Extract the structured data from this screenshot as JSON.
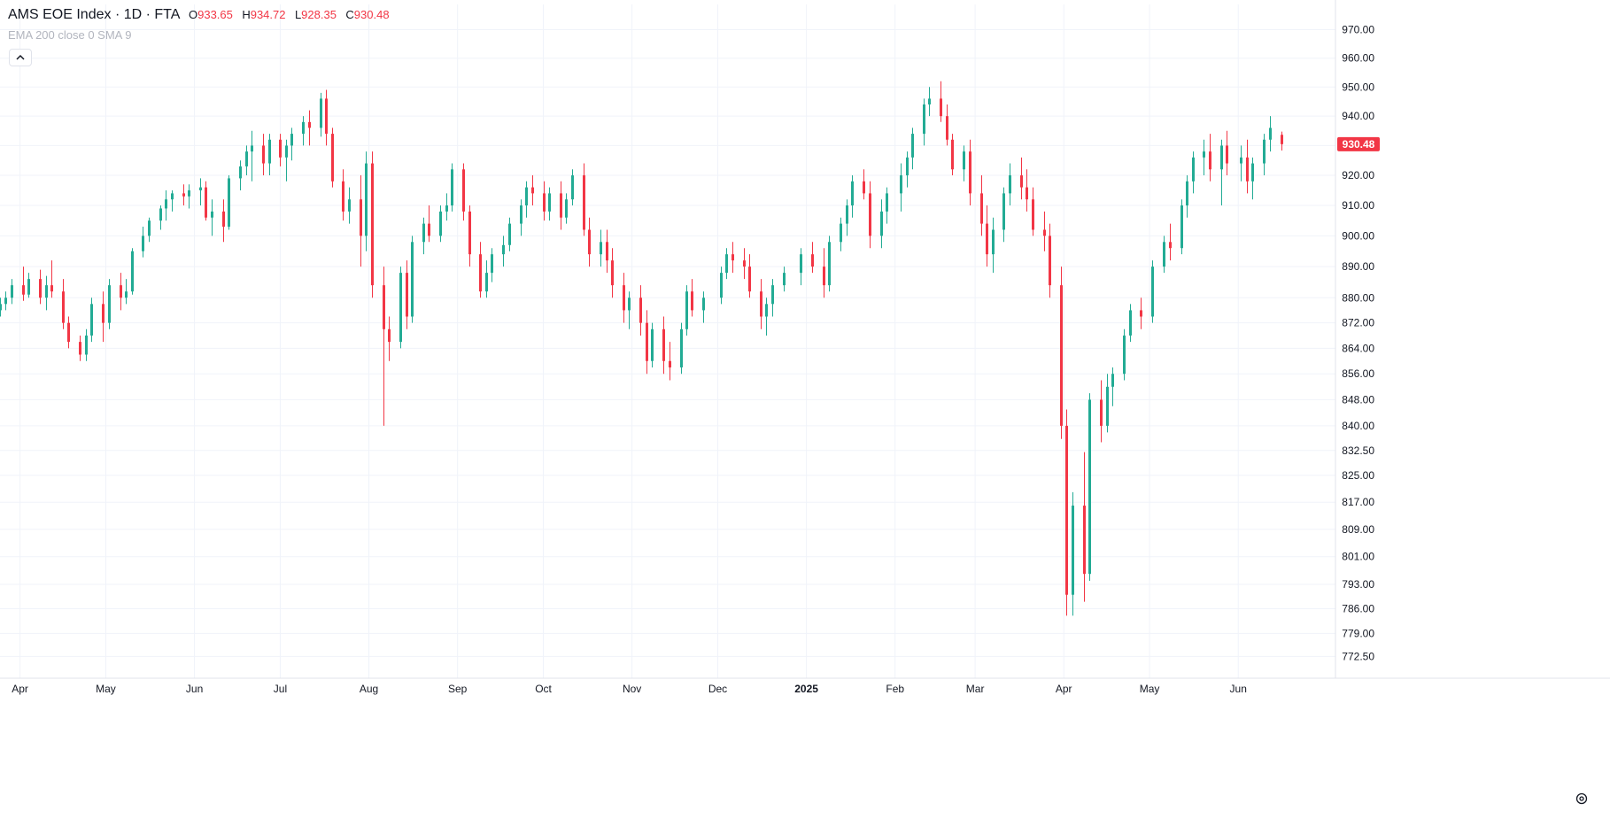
{
  "legend": {
    "symbol": "AMS EOE Index · 1D · FTA",
    "open_label": "O",
    "open": "933.65",
    "high_label": "H",
    "high": "934.72",
    "low_label": "L",
    "low": "928.35",
    "close_label": "C",
    "close": "930.48"
  },
  "indicators": "EMA 200 close 0 SMA 9",
  "colors": {
    "up": "#22ab94",
    "down": "#f23645",
    "grid": "#f0f3fa",
    "text": "#131722"
  },
  "icons": {
    "collapse": "chevron-up-icon",
    "settings": "gear-icon"
  },
  "chart_data": {
    "type": "candlestick",
    "title": "AMS EOE Index · 1D · FTA",
    "y_scale": "log",
    "ylim": [
      769,
      975
    ],
    "y_ticks": [
      970,
      960,
      950,
      940,
      930,
      920,
      910,
      900,
      890,
      880,
      872,
      864,
      856,
      848,
      840,
      832.5,
      825,
      817,
      809,
      801,
      793,
      786,
      779,
      772.5
    ],
    "y_tick_labels": [
      "970.00",
      "960.00",
      "950.00",
      "940.00",
      "930.00",
      "920.00",
      "910.00",
      "900.00",
      "890.00",
      "880.00",
      "872.00",
      "864.00",
      "856.00",
      "848.00",
      "840.00",
      "832.50",
      "825.00",
      "817.00",
      "809.00",
      "801.00",
      "793.00",
      "786.00",
      "779.00",
      "772.50"
    ],
    "x_range": [
      "2024-03-25",
      "2025-07-05"
    ],
    "x_ticks": [
      {
        "label": "Apr",
        "date": "2024-04-01"
      },
      {
        "label": "May",
        "date": "2024-05-01"
      },
      {
        "label": "Jun",
        "date": "2024-06-01"
      },
      {
        "label": "Jul",
        "date": "2024-07-01"
      },
      {
        "label": "Aug",
        "date": "2024-08-01"
      },
      {
        "label": "Sep",
        "date": "2024-09-01"
      },
      {
        "label": "Oct",
        "date": "2024-10-01"
      },
      {
        "label": "Nov",
        "date": "2024-11-01"
      },
      {
        "label": "Dec",
        "date": "2024-12-01"
      },
      {
        "label": "2025",
        "date": "2025-01-01",
        "bold": true
      },
      {
        "label": "Feb",
        "date": "2025-02-01"
      },
      {
        "label": "Mar",
        "date": "2025-03-01"
      },
      {
        "label": "Apr",
        "date": "2025-04-01"
      },
      {
        "label": "May",
        "date": "2025-05-01"
      },
      {
        "label": "Jun",
        "date": "2025-06-01"
      }
    ],
    "last_price_label": "930.48",
    "last_price": 930.48,
    "candles_fields": [
      "date",
      "open",
      "high",
      "low",
      "close"
    ],
    "candles": [
      [
        "2024-03-25",
        876,
        880,
        874,
        878
      ],
      [
        "2024-03-27",
        878,
        882,
        876,
        880
      ],
      [
        "2024-03-29",
        880,
        886,
        878,
        884
      ],
      [
        "2024-04-02",
        884,
        890,
        879,
        881
      ],
      [
        "2024-04-04",
        881,
        888,
        880,
        886
      ],
      [
        "2024-04-08",
        886,
        889,
        878,
        880
      ],
      [
        "2024-04-10",
        880,
        887,
        876,
        884
      ],
      [
        "2024-04-12",
        884,
        892,
        880,
        882
      ],
      [
        "2024-04-16",
        882,
        886,
        870,
        872
      ],
      [
        "2024-04-18",
        872,
        874,
        864,
        866
      ],
      [
        "2024-04-22",
        866,
        868,
        860,
        862
      ],
      [
        "2024-04-24",
        862,
        870,
        860,
        868
      ],
      [
        "2024-04-26",
        868,
        880,
        866,
        878
      ],
      [
        "2024-04-30",
        878,
        882,
        866,
        872
      ],
      [
        "2024-05-02",
        872,
        886,
        870,
        884
      ],
      [
        "2024-05-06",
        884,
        888,
        876,
        880
      ],
      [
        "2024-05-08",
        880,
        886,
        878,
        882
      ],
      [
        "2024-05-10",
        882,
        896,
        881,
        895
      ],
      [
        "2024-05-14",
        895,
        903,
        893,
        900
      ],
      [
        "2024-05-16",
        900,
        906,
        898,
        905
      ],
      [
        "2024-05-20",
        905,
        910,
        902,
        909
      ],
      [
        "2024-05-22",
        909,
        915,
        905,
        912
      ],
      [
        "2024-05-24",
        912,
        915,
        908,
        914
      ],
      [
        "2024-05-28",
        914,
        917,
        910,
        913
      ],
      [
        "2024-05-30",
        913,
        917,
        909,
        915
      ],
      [
        "2024-06-03",
        915,
        919,
        910,
        916
      ],
      [
        "2024-06-05",
        916,
        918,
        905,
        906
      ],
      [
        "2024-06-07",
        906,
        912,
        900,
        908
      ],
      [
        "2024-06-11",
        908,
        912,
        898,
        903
      ],
      [
        "2024-06-13",
        903,
        920,
        902,
        919
      ],
      [
        "2024-06-17",
        919,
        925,
        915,
        923
      ],
      [
        "2024-06-19",
        923,
        930,
        920,
        928
      ],
      [
        "2024-06-21",
        928,
        935,
        918,
        930
      ],
      [
        "2024-06-25",
        930,
        934,
        920,
        924
      ],
      [
        "2024-06-27",
        924,
        934,
        920,
        932
      ],
      [
        "2024-07-01",
        932,
        934,
        923,
        926
      ],
      [
        "2024-07-03",
        926,
        932,
        918,
        930
      ],
      [
        "2024-07-05",
        930,
        936,
        925,
        934
      ],
      [
        "2024-07-09",
        934,
        940,
        930,
        938
      ],
      [
        "2024-07-11",
        938,
        942,
        930,
        936
      ],
      [
        "2024-07-15",
        936,
        948,
        933,
        946
      ],
      [
        "2024-07-17",
        946,
        949,
        930,
        934
      ],
      [
        "2024-07-19",
        934,
        936,
        916,
        918
      ],
      [
        "2024-07-23",
        918,
        922,
        905,
        908
      ],
      [
        "2024-07-25",
        908,
        916,
        904,
        912
      ],
      [
        "2024-07-29",
        912,
        920,
        890,
        900
      ],
      [
        "2024-07-31",
        900,
        928,
        895,
        924
      ],
      [
        "2024-08-02",
        924,
        928,
        880,
        884
      ],
      [
        "2024-08-06",
        884,
        890,
        840,
        870
      ],
      [
        "2024-08-08",
        870,
        874,
        860,
        866
      ],
      [
        "2024-08-12",
        866,
        890,
        864,
        888
      ],
      [
        "2024-08-14",
        888,
        892,
        870,
        874
      ],
      [
        "2024-08-16",
        874,
        900,
        872,
        898
      ],
      [
        "2024-08-20",
        898,
        906,
        894,
        904
      ],
      [
        "2024-08-22",
        904,
        910,
        898,
        900
      ],
      [
        "2024-08-26",
        900,
        910,
        898,
        908
      ],
      [
        "2024-08-28",
        908,
        914,
        905,
        910
      ],
      [
        "2024-08-30",
        910,
        924,
        908,
        922
      ],
      [
        "2024-09-03",
        922,
        924,
        905,
        908
      ],
      [
        "2024-09-05",
        908,
        910,
        890,
        894
      ],
      [
        "2024-09-09",
        894,
        898,
        880,
        882
      ],
      [
        "2024-09-11",
        882,
        892,
        880,
        888
      ],
      [
        "2024-09-13",
        888,
        896,
        885,
        894
      ],
      [
        "2024-09-17",
        894,
        900,
        890,
        897
      ],
      [
        "2024-09-19",
        897,
        906,
        895,
        904
      ],
      [
        "2024-09-23",
        904,
        912,
        900,
        910
      ],
      [
        "2024-09-25",
        910,
        918,
        906,
        916
      ],
      [
        "2024-09-27",
        916,
        920,
        910,
        914
      ],
      [
        "2024-10-01",
        914,
        918,
        905,
        908
      ],
      [
        "2024-10-03",
        908,
        916,
        905,
        914
      ],
      [
        "2024-10-07",
        914,
        918,
        902,
        906
      ],
      [
        "2024-10-09",
        906,
        914,
        904,
        912
      ],
      [
        "2024-10-11",
        912,
        922,
        910,
        920
      ],
      [
        "2024-10-15",
        920,
        924,
        900,
        902
      ],
      [
        "2024-10-17",
        902,
        906,
        890,
        894
      ],
      [
        "2024-10-21",
        894,
        902,
        890,
        898
      ],
      [
        "2024-10-23",
        898,
        902,
        888,
        892
      ],
      [
        "2024-10-25",
        892,
        896,
        880,
        884
      ],
      [
        "2024-10-29",
        884,
        888,
        872,
        876
      ],
      [
        "2024-10-31",
        876,
        882,
        870,
        880
      ],
      [
        "2024-11-04",
        880,
        884,
        868,
        872
      ],
      [
        "2024-11-06",
        872,
        876,
        856,
        860
      ],
      [
        "2024-11-08",
        860,
        872,
        858,
        870
      ],
      [
        "2024-11-12",
        870,
        874,
        856,
        860
      ],
      [
        "2024-11-14",
        860,
        866,
        854,
        858
      ],
      [
        "2024-11-18",
        858,
        872,
        856,
        870
      ],
      [
        "2024-11-20",
        870,
        884,
        868,
        882
      ],
      [
        "2024-11-22",
        882,
        886,
        874,
        876
      ],
      [
        "2024-11-26",
        876,
        882,
        872,
        880
      ],
      [
        "2024-12-02",
        880,
        890,
        878,
        888
      ],
      [
        "2024-12-04",
        888,
        896,
        886,
        894
      ],
      [
        "2024-12-06",
        894,
        898,
        888,
        892
      ],
      [
        "2024-12-10",
        892,
        896,
        886,
        890
      ],
      [
        "2024-12-12",
        890,
        894,
        880,
        882
      ],
      [
        "2024-12-16",
        882,
        886,
        870,
        874
      ],
      [
        "2024-12-18",
        874,
        880,
        868,
        878
      ],
      [
        "2024-12-20",
        878,
        886,
        874,
        884
      ],
      [
        "2024-12-24",
        884,
        890,
        882,
        888
      ],
      [
        "2024-12-30",
        888,
        896,
        884,
        894
      ],
      [
        "2025-01-03",
        894,
        898,
        888,
        890
      ],
      [
        "2025-01-07",
        890,
        896,
        880,
        884
      ],
      [
        "2025-01-09",
        884,
        900,
        882,
        898
      ],
      [
        "2025-01-13",
        898,
        906,
        895,
        904
      ],
      [
        "2025-01-15",
        904,
        912,
        900,
        910
      ],
      [
        "2025-01-17",
        910,
        920,
        906,
        918
      ],
      [
        "2025-01-21",
        918,
        922,
        912,
        914
      ],
      [
        "2025-01-23",
        914,
        918,
        896,
        900
      ],
      [
        "2025-01-27",
        900,
        912,
        896,
        908
      ],
      [
        "2025-01-29",
        908,
        916,
        904,
        914
      ],
      [
        "2025-02-03",
        914,
        924,
        908,
        920
      ],
      [
        "2025-02-05",
        920,
        928,
        916,
        926
      ],
      [
        "2025-02-07",
        926,
        936,
        922,
        934
      ],
      [
        "2025-02-11",
        934,
        946,
        930,
        944
      ],
      [
        "2025-02-13",
        944,
        950,
        940,
        946
      ],
      [
        "2025-02-17",
        946,
        952,
        938,
        940
      ],
      [
        "2025-02-19",
        940,
        944,
        930,
        932
      ],
      [
        "2025-02-21",
        932,
        934,
        920,
        922
      ],
      [
        "2025-02-25",
        922,
        930,
        918,
        928
      ],
      [
        "2025-02-27",
        928,
        932,
        910,
        914
      ],
      [
        "2025-03-03",
        914,
        920,
        900,
        904
      ],
      [
        "2025-03-05",
        904,
        910,
        890,
        894
      ],
      [
        "2025-03-07",
        894,
        906,
        888,
        902
      ],
      [
        "2025-03-11",
        902,
        916,
        898,
        914
      ],
      [
        "2025-03-13",
        914,
        924,
        910,
        920
      ],
      [
        "2025-03-17",
        920,
        926,
        912,
        916
      ],
      [
        "2025-03-19",
        916,
        922,
        908,
        912
      ],
      [
        "2025-03-21",
        912,
        916,
        900,
        902
      ],
      [
        "2025-03-25",
        902,
        908,
        895,
        900
      ],
      [
        "2025-03-27",
        900,
        904,
        880,
        884
      ],
      [
        "2025-03-31",
        884,
        890,
        836,
        840
      ],
      [
        "2025-04-02",
        840,
        845,
        784,
        790
      ],
      [
        "2025-04-04",
        790,
        820,
        784,
        816
      ],
      [
        "2025-04-08",
        816,
        832,
        788,
        796
      ],
      [
        "2025-04-10",
        796,
        850,
        794,
        848
      ],
      [
        "2025-04-14",
        848,
        854,
        835,
        840
      ],
      [
        "2025-04-16",
        840,
        856,
        838,
        852
      ],
      [
        "2025-04-18",
        852,
        858,
        846,
        856
      ],
      [
        "2025-04-22",
        856,
        870,
        854,
        868
      ],
      [
        "2025-04-24",
        868,
        878,
        866,
        876
      ],
      [
        "2025-04-28",
        876,
        880,
        870,
        874
      ],
      [
        "2025-05-02",
        874,
        892,
        872,
        890
      ],
      [
        "2025-05-06",
        890,
        900,
        888,
        898
      ],
      [
        "2025-05-08",
        898,
        904,
        892,
        896
      ],
      [
        "2025-05-12",
        896,
        912,
        894,
        910
      ],
      [
        "2025-05-14",
        910,
        920,
        906,
        918
      ],
      [
        "2025-05-16",
        918,
        928,
        914,
        926
      ],
      [
        "2025-05-20",
        926,
        932,
        920,
        928
      ],
      [
        "2025-05-22",
        928,
        934,
        918,
        922
      ],
      [
        "2025-05-26",
        922,
        932,
        910,
        930
      ],
      [
        "2025-05-28",
        930,
        935,
        920,
        924
      ],
      [
        "2025-06-02",
        924,
        930,
        918,
        926
      ],
      [
        "2025-06-04",
        926,
        932,
        914,
        918
      ],
      [
        "2025-06-06",
        918,
        926,
        912,
        924
      ],
      [
        "2025-06-10",
        924,
        934,
        920,
        932
      ],
      [
        "2025-06-12",
        932,
        940,
        928,
        936
      ],
      [
        "2025-06-16",
        933.65,
        934.72,
        928.35,
        930.48
      ]
    ]
  }
}
